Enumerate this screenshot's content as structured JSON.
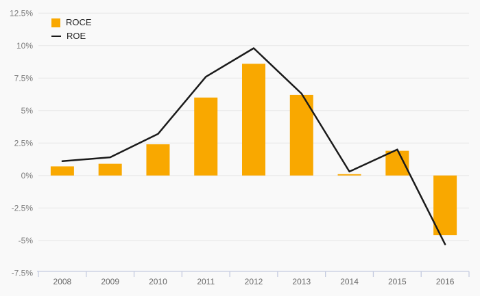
{
  "chart_data": {
    "type": "combo",
    "title": "",
    "categories": [
      "2008",
      "2009",
      "2010",
      "2011",
      "2012",
      "2013",
      "2014",
      "2015",
      "2016"
    ],
    "series": [
      {
        "name": "ROCE",
        "type": "bar",
        "color": "#F9A800",
        "values": [
          0.7,
          0.9,
          2.4,
          6.0,
          8.6,
          6.2,
          0.1,
          1.9,
          -4.6
        ]
      },
      {
        "name": "ROE",
        "type": "line",
        "color": "#1A1A1A",
        "values": [
          1.1,
          1.4,
          3.2,
          7.6,
          9.8,
          6.3,
          0.3,
          2.0,
          -5.3
        ]
      }
    ],
    "xlabel": "",
    "ylabel": "",
    "ylim": [
      -7.5,
      12.5
    ],
    "y_ticks": {
      "values": [
        12.5,
        10,
        7.5,
        5,
        2.5,
        0,
        -2.5,
        -5,
        -7.5
      ],
      "labels": [
        "12.5%",
        "10%",
        "7.5%",
        "5%",
        "2.5%",
        "0%",
        "-2.5%",
        "-5%",
        "-7.5%"
      ]
    },
    "grid": true,
    "legend_position": "top-left"
  },
  "colors": {
    "background": "#F9F9F9",
    "gridline": "#E7E7E7",
    "axis_line": "#C5CBE0",
    "y_label": "#7A7A7A",
    "x_label": "#666666",
    "legend_text": "#222222"
  }
}
